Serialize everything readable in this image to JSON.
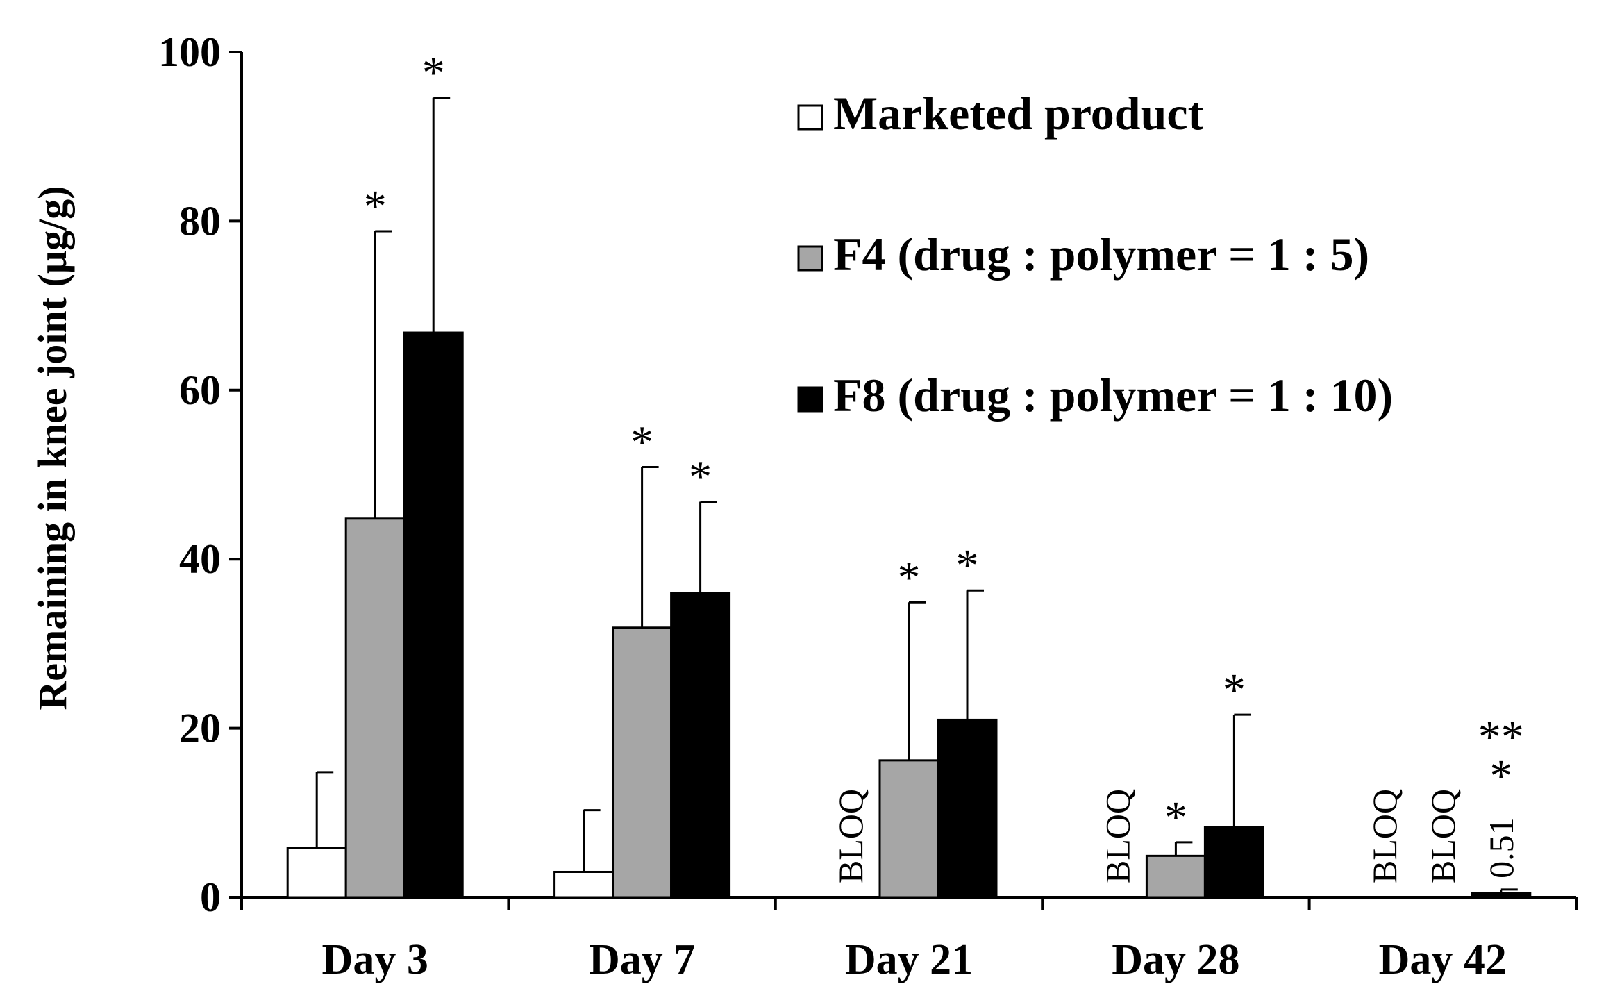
{
  "chart_data": {
    "type": "bar",
    "title": "",
    "xlabel": "",
    "ylabel": "Remaining in knee joint (µg/g)",
    "ylim": [
      0,
      100
    ],
    "yticks": [
      0,
      20,
      40,
      60,
      80,
      100
    ],
    "legend_position": "top-right",
    "categories": [
      "Day 3",
      "Day 7",
      "Day 21",
      "Day 28",
      "Day 42"
    ],
    "series": [
      {
        "name": "Marketed product",
        "color": "#ffffff",
        "values": [
          5.8,
          3.0,
          0,
          0,
          0
        ],
        "errors": [
          9.0,
          7.3,
          null,
          null,
          null
        ],
        "annotations": [
          {
            "star": "",
            "note": ""
          },
          {
            "star": "",
            "note": ""
          },
          {
            "star": "",
            "note": "BLOQ"
          },
          {
            "star": "",
            "note": "BLOQ"
          },
          {
            "star": "",
            "note": "BLOQ"
          }
        ]
      },
      {
        "name": "F4 (drug : polymer = 1 : 5)",
        "color": "#a6a6a6",
        "values": [
          44.8,
          31.9,
          16.2,
          4.9,
          0
        ],
        "errors": [
          34.0,
          19.0,
          18.7,
          1.6,
          null
        ],
        "annotations": [
          {
            "star": "*",
            "note": ""
          },
          {
            "star": "*",
            "note": ""
          },
          {
            "star": "*",
            "note": ""
          },
          {
            "star": "*",
            "note": ""
          },
          {
            "star": "",
            "note": "BLOQ"
          }
        ]
      },
      {
        "name": "F8 (drug : polymer = 1 : 10)",
        "color": "#000000",
        "values": [
          66.8,
          36.0,
          21.0,
          8.3,
          0.51
        ],
        "errors": [
          27.8,
          10.8,
          15.3,
          13.3,
          0.4
        ],
        "annotations": [
          {
            "star": "*",
            "note": ""
          },
          {
            "star": "*",
            "note": ""
          },
          {
            "star": "*",
            "note": ""
          },
          {
            "star": "*",
            "note": ""
          },
          {
            "star": "*",
            "note": "0.51",
            "extra": "**"
          }
        ]
      }
    ]
  }
}
